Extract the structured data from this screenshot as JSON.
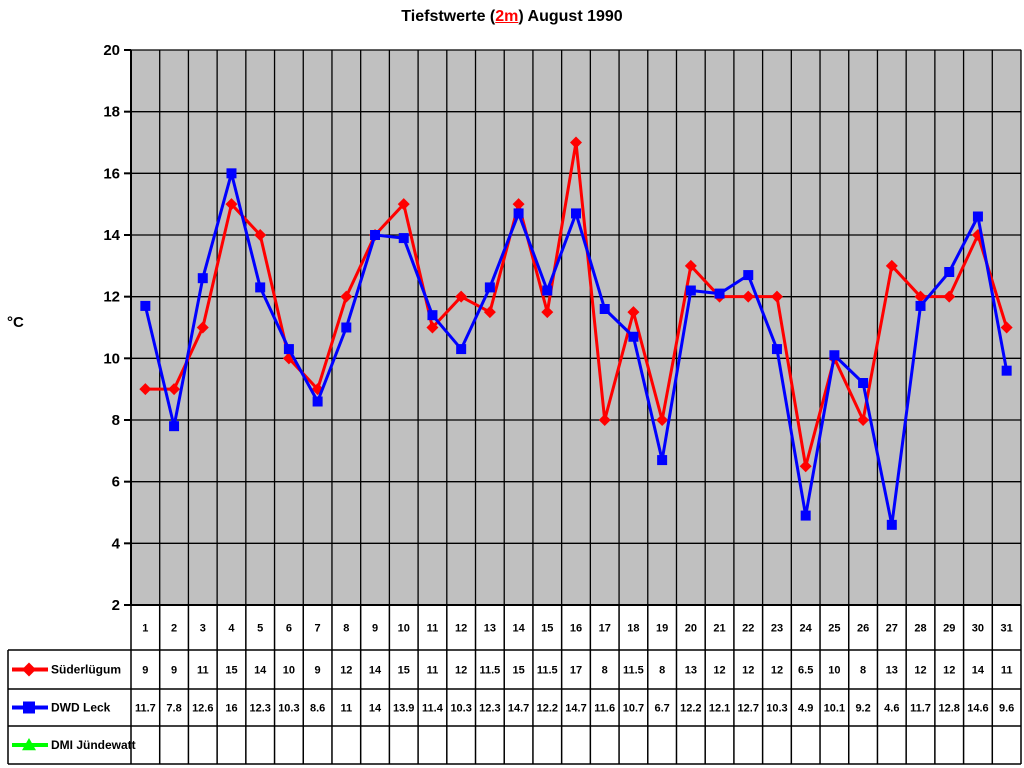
{
  "title": {
    "prefix": "Tiefstwerte (",
    "highlight": "2m",
    "suffix": ") August 1990",
    "highlight_color": "#ff0000"
  },
  "chart_data": {
    "type": "line",
    "title": "Tiefstwerte (2m) August 1990",
    "xlabel": "",
    "ylabel": "°C",
    "ylim": [
      2,
      20
    ],
    "ytick_step": 2,
    "grid": true,
    "plot_bg_color": "#c0c0c0",
    "grid_color": "#000000",
    "legend_position": "table-left",
    "categories": [
      1,
      2,
      3,
      4,
      5,
      6,
      7,
      8,
      9,
      10,
      11,
      12,
      13,
      14,
      15,
      16,
      17,
      18,
      19,
      20,
      21,
      22,
      23,
      24,
      25,
      26,
      27,
      28,
      29,
      30,
      31
    ],
    "series": [
      {
        "name": "Süderlügum",
        "color": "#ff0000",
        "marker": "diamond",
        "values": [
          9,
          9,
          11,
          15,
          14,
          10,
          9,
          12,
          14,
          15,
          11,
          12,
          11.5,
          15,
          11.5,
          17,
          8,
          11.5,
          8,
          13,
          12,
          12,
          12,
          6.5,
          10,
          8,
          13,
          12,
          12,
          14,
          11
        ]
      },
      {
        "name": "DWD Leck",
        "color": "#0000ff",
        "marker": "square",
        "values": [
          11.7,
          7.8,
          12.6,
          16,
          12.3,
          10.3,
          8.6,
          11,
          14,
          13.9,
          11.4,
          10.3,
          12.3,
          14.7,
          12.2,
          14.7,
          11.6,
          10.7,
          6.7,
          12.2,
          12.1,
          12.7,
          10.3,
          4.9,
          10.1,
          9.2,
          4.6,
          11.7,
          12.8,
          14.6,
          9.6
        ]
      },
      {
        "name": "DMI Jündewatt",
        "color": "#00ff00",
        "marker": "triangle",
        "values": []
      }
    ]
  }
}
